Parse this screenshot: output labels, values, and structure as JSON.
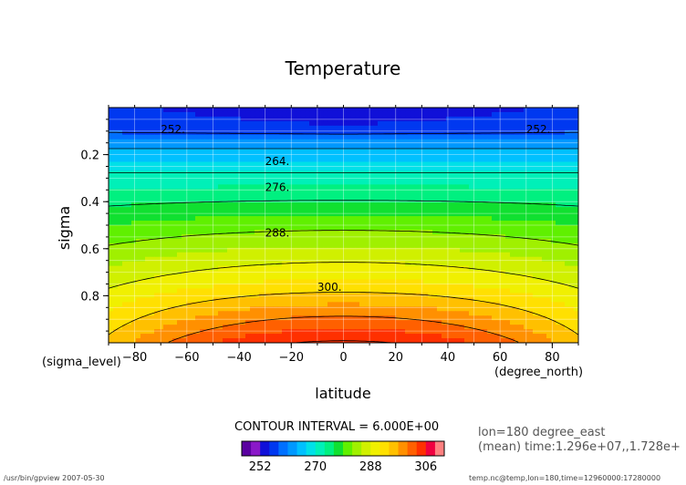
{
  "chart_data": {
    "type": "contour",
    "title": "Temperature",
    "xlabel": "latitude",
    "ylabel": "sigma",
    "x_axis_label": "(sigma_level)",
    "x_unit_label": "(degree_north)",
    "xlim": [
      -90,
      90
    ],
    "ylim": [
      1.0,
      0.0
    ],
    "y_inverted": true,
    "xticks": [
      -80,
      -60,
      -40,
      -20,
      0,
      20,
      40,
      60,
      80
    ],
    "yticks": [
      0.2,
      0.4,
      0.6,
      0.8
    ],
    "ytick_labels": [
      "0.2",
      "0.4",
      "0.6",
      "0.8"
    ],
    "grid": true,
    "contour_interval_text": "CONTOUR INTERVAL = 6.000E+00",
    "contour_labels": [
      "252.",
      "252.",
      "264.",
      "276.",
      "288.",
      "300."
    ],
    "colorbar_levels": [
      246,
      249,
      252,
      255,
      258,
      261,
      264,
      267,
      270,
      273,
      276,
      279,
      282,
      285,
      288,
      291,
      294,
      297,
      300,
      303,
      306,
      309,
      312
    ],
    "colorbar_ticks": [
      252,
      270,
      288,
      306
    ],
    "colorbar_colors": [
      "#5a00a0",
      "#8a18c8",
      "#1010d8",
      "#0038f0",
      "#0070ff",
      "#0098ff",
      "#00c0ff",
      "#00e0e8",
      "#00f0b8",
      "#00f080",
      "#10e030",
      "#60f000",
      "#a0f000",
      "#d0f000",
      "#f0f000",
      "#ffe000",
      "#ffc000",
      "#ff9000",
      "#ff6000",
      "#ff3000",
      "#f00040",
      "#ff8080"
    ],
    "series": [
      {
        "name": "bands",
        "levels": [
          252,
          258,
          264,
          270,
          276,
          282,
          288,
          294,
          300,
          306,
          312
        ]
      }
    ],
    "field": {
      "lat": [
        -90,
        -80,
        -70,
        -60,
        -50,
        -40,
        -30,
        -20,
        -10,
        0,
        10,
        20,
        30,
        40,
        50,
        60,
        70,
        80,
        90
      ],
      "sigma": [
        0.03,
        0.1,
        0.15,
        0.2,
        0.25,
        0.3,
        0.35,
        0.4,
        0.45,
        0.5,
        0.55,
        0.6,
        0.65,
        0.7,
        0.75,
        0.8,
        0.85,
        0.9,
        0.95,
        1.0
      ]
    }
  },
  "info": {
    "lon_text": "lon=180 degree_east",
    "time_text": "(mean) time:1.296e+07,,1.728e+",
    "footer_left": "/usr/bin/gpview  2007-05-30",
    "footer_right": "temp.nc@temp,lon=180,time=12960000:17280000"
  }
}
